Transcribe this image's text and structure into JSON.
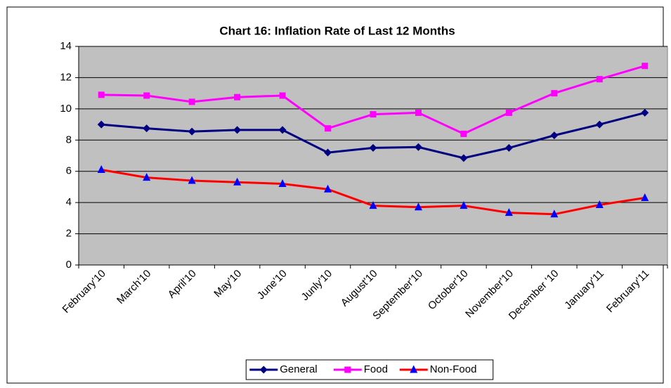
{
  "chart_data": {
    "type": "line",
    "title": "Chart 16: Inflation Rate of Last 12 Months",
    "categories": [
      "February'10",
      "March'10",
      "April'10",
      "May'10",
      "June'10",
      "Junly'10",
      "August'10",
      "September'10",
      "October'10",
      "November'10",
      "December '10",
      "January'11",
      "February'11"
    ],
    "series": [
      {
        "name": "General",
        "color": "#000080",
        "marker": "diamond",
        "marker_color": "#000080",
        "values": [
          9.0,
          8.75,
          8.55,
          8.65,
          8.65,
          7.2,
          7.5,
          7.55,
          6.85,
          7.5,
          8.3,
          9.0,
          9.75
        ]
      },
      {
        "name": "Food",
        "color": "#ff00ff",
        "marker": "square",
        "marker_color": "#ff00ff",
        "values": [
          10.9,
          10.85,
          10.45,
          10.75,
          10.85,
          8.75,
          9.65,
          9.75,
          8.4,
          9.75,
          11.0,
          11.9,
          12.75
        ]
      },
      {
        "name": "Non-Food",
        "color": "#ff0000",
        "marker": "triangle",
        "marker_color": "#0000ff",
        "values": [
          6.1,
          5.6,
          5.4,
          5.3,
          5.2,
          4.85,
          3.8,
          3.7,
          3.8,
          3.35,
          3.25,
          3.85,
          4.3
        ]
      }
    ],
    "ylim": [
      0,
      14
    ],
    "yticks": [
      0,
      2,
      4,
      6,
      8,
      10,
      12,
      14
    ],
    "grid": true,
    "plot_background": "#c0c0c0",
    "legend": "bottom"
  }
}
